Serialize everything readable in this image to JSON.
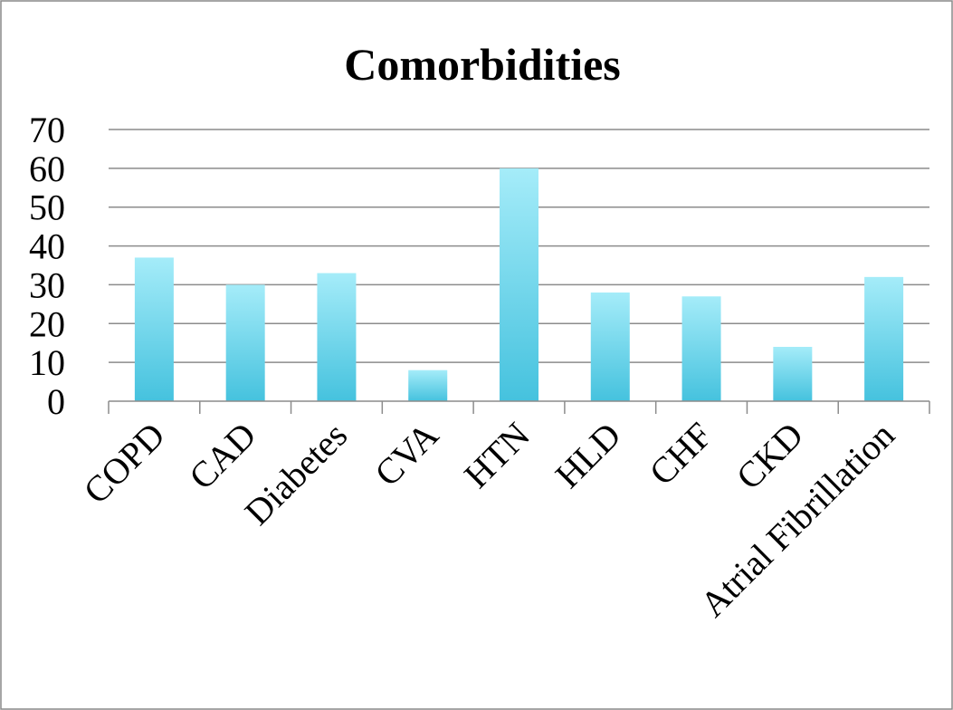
{
  "chart_data": {
    "type": "bar",
    "title": "Comorbidities",
    "xlabel": "",
    "ylabel": "",
    "categories": [
      "COPD",
      "CAD",
      "Diabetes",
      "CVA",
      "HTN",
      "HLD",
      "CHF",
      "CKD",
      "Atrial Fibrillation"
    ],
    "values": [
      37,
      30,
      33,
      8,
      60,
      28,
      27,
      14,
      32
    ],
    "ylim": [
      0,
      70
    ],
    "yticks": [
      "0",
      "10",
      "20",
      "30",
      "40",
      "50",
      "60",
      "70"
    ],
    "grid": true,
    "legend": "none",
    "colors": {
      "bar_top": "#a5ecf9",
      "bar_bottom": "#45c2de",
      "grid": "#8c8c8c",
      "frame": "#888888"
    }
  }
}
